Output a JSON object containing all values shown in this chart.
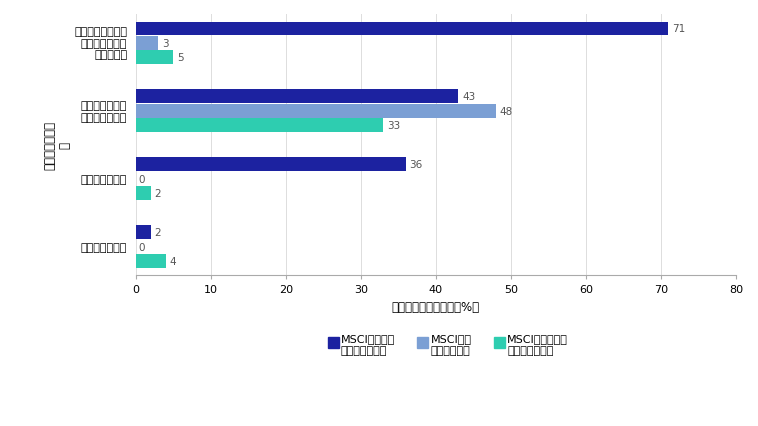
{
  "categories": [
    "取締役会メンバー\n過半数の経営陣\nからの独立",
    "取締役に対する\n題著な反対投票",
    "株式の持ち合い",
    "ポイズン・ピル"
  ],
  "series_names": [
    "MSCIジャパン\n・インデックス",
    "MSCI米国\nインデックス",
    "MSCIヨーロッパ\n・インデックス"
  ],
  "values": {
    "japan": [
      71,
      43,
      36,
      2
    ],
    "usa": [
      3,
      48,
      0,
      0
    ],
    "europe": [
      5,
      33,
      2,
      4
    ]
  },
  "colors": {
    "japan": "#1c22a0",
    "usa": "#7b9fd4",
    "europe": "#2ecdb0"
  },
  "xlabel": "フラグが立った企業（%）",
  "ylabel": "キーメトリック",
  "ylabelextra": "＋",
  "xlim": [
    0,
    80
  ],
  "xticks": [
    0,
    10,
    20,
    30,
    40,
    50,
    60,
    70,
    80
  ],
  "bar_height": 0.18,
  "value_fontsize": 7.5,
  "axis_label_fontsize": 8.5,
  "tick_fontsize": 8,
  "legend_fontsize": 8,
  "background_color": "#ffffff"
}
